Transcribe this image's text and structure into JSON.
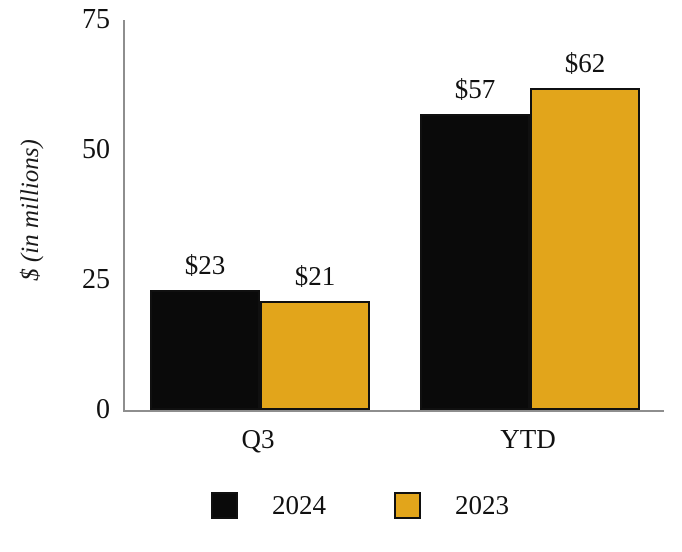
{
  "chart_data": {
    "type": "bar",
    "title": "",
    "categories": [
      "Q3",
      "YTD"
    ],
    "series": [
      {
        "name": "2024",
        "color": "#0a0a0a",
        "values": [
          23,
          57
        ],
        "value_labels": [
          "$23",
          "$57"
        ]
      },
      {
        "name": "2023",
        "color": "#e2a51b",
        "values": [
          21,
          62
        ],
        "value_labels": [
          "$21",
          "$62"
        ]
      }
    ],
    "xlabel": "",
    "ylabel": "$ (in millions)",
    "yticks": [
      0,
      25,
      50,
      75
    ],
    "ylim": [
      0,
      75
    ],
    "grid": false,
    "legend_position": "bottom",
    "bar_outline_color": "#101010",
    "axis_line_color": "#8e8e8e"
  }
}
